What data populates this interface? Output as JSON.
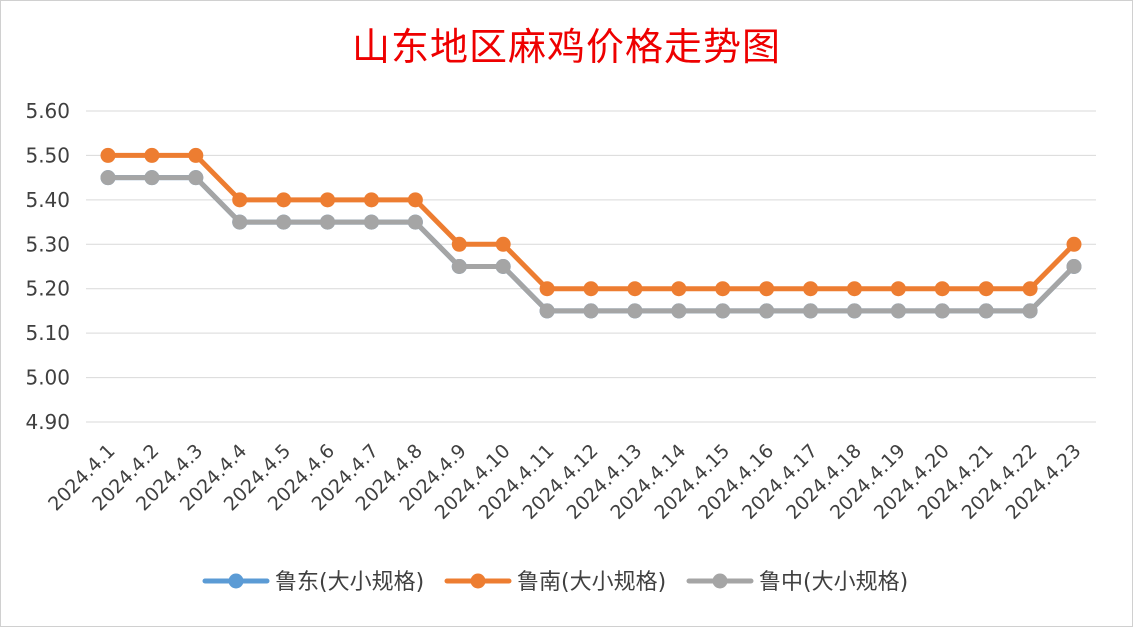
{
  "chart_data": {
    "type": "line",
    "title": "山东地区麻鸡价格走势图",
    "xlabel": "",
    "ylabel": "",
    "ylim": [
      4.9,
      5.6
    ],
    "yticks": [
      "4.90",
      "5.00",
      "5.10",
      "5.20",
      "5.30",
      "5.40",
      "5.50",
      "5.60"
    ],
    "grid": true,
    "legend_position": "bottom",
    "categories": [
      "2024.4.1",
      "2024.4.2",
      "2024.4.3",
      "2024.4.4",
      "2024.4.5",
      "2024.4.6",
      "2024.4.7",
      "2024.4.8",
      "2024.4.9",
      "2024.4.10",
      "2024.4.11",
      "2024.4.12",
      "2024.4.13",
      "2024.4.14",
      "2024.4.15",
      "2024.4.16",
      "2024.4.17",
      "2024.4.18",
      "2024.4.19",
      "2024.4.20",
      "2024.4.21",
      "2024.4.22",
      "2024.4.23"
    ],
    "series": [
      {
        "name": "鲁东(大小规格)",
        "color": "#5b9bd5",
        "values": [
          5.45,
          5.45,
          5.45,
          5.35,
          5.35,
          5.35,
          5.35,
          5.35,
          5.25,
          5.25,
          5.15,
          5.15,
          5.15,
          5.15,
          5.15,
          5.15,
          5.15,
          5.15,
          5.15,
          5.15,
          5.15,
          5.15,
          5.25
        ]
      },
      {
        "name": "鲁南(大小规格)",
        "color": "#ed7d31",
        "values": [
          5.5,
          5.5,
          5.5,
          5.4,
          5.4,
          5.4,
          5.4,
          5.4,
          5.3,
          5.3,
          5.2,
          5.2,
          5.2,
          5.2,
          5.2,
          5.2,
          5.2,
          5.2,
          5.2,
          5.2,
          5.2,
          5.2,
          5.3
        ]
      },
      {
        "name": "鲁中(大小规格)",
        "color": "#a5a5a5",
        "values": [
          5.45,
          5.45,
          5.45,
          5.35,
          5.35,
          5.35,
          5.35,
          5.35,
          5.25,
          5.25,
          5.15,
          5.15,
          5.15,
          5.15,
          5.15,
          5.15,
          5.15,
          5.15,
          5.15,
          5.15,
          5.15,
          5.15,
          5.25
        ]
      }
    ]
  }
}
